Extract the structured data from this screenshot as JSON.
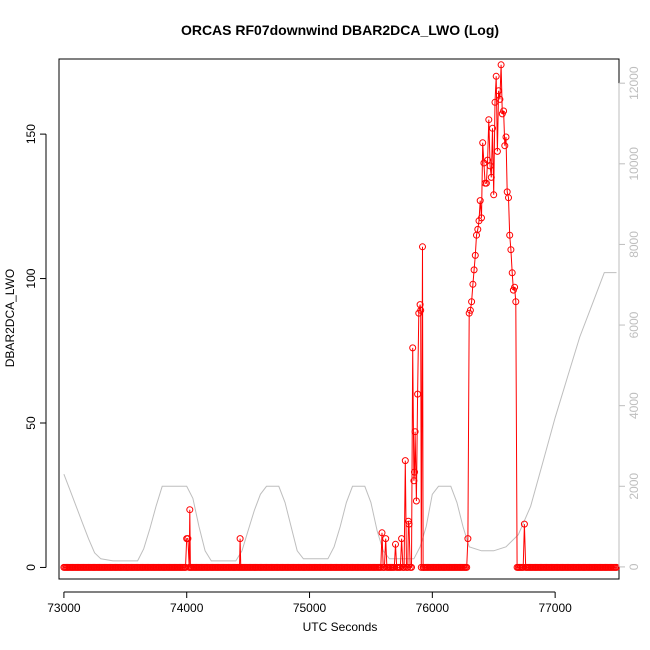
{
  "colors": {
    "primary_series": "#ff0000",
    "altitude_series": "#bebebe",
    "axis": "#000000",
    "right_axis": "#bebebe"
  },
  "chart_data": {
    "type": "line",
    "title": "ORCAS RF07downwind DBAR2DCA_LWO (Log)",
    "xlabel": "UTC Seconds",
    "ylabel": "DBAR2DCA_LWO",
    "y2label": "",
    "xlim": [
      72960,
      77520
    ],
    "ylim": [
      -4,
      176
    ],
    "y2lim": [
      -300,
      12600
    ],
    "x_ticks": [
      73000,
      74000,
      75000,
      76000,
      77000
    ],
    "y_ticks": [
      0,
      50,
      100,
      150
    ],
    "y2_ticks": [
      0,
      2000,
      4000,
      6000,
      8000,
      10000,
      12000
    ],
    "grid": false,
    "marker": "open-circle",
    "series": [
      {
        "axis": "left",
        "style": "line+markers",
        "zero_baseline": {
          "x_start": 73000,
          "x_end": 77500,
          "step": 10
        },
        "points": [
          [
            73990,
            0
          ],
          [
            74000,
            10
          ],
          [
            74010,
            10
          ],
          [
            74020,
            0
          ],
          [
            74025,
            20
          ],
          [
            74030,
            0
          ],
          [
            74430,
            0
          ],
          [
            74435,
            10
          ],
          [
            74440,
            0
          ],
          [
            75580,
            0
          ],
          [
            75590,
            12
          ],
          [
            75600,
            0
          ],
          [
            75620,
            10
          ],
          [
            75630,
            0
          ],
          [
            75690,
            0
          ],
          [
            75700,
            8
          ],
          [
            75710,
            0
          ],
          [
            75740,
            0
          ],
          [
            75750,
            10
          ],
          [
            75760,
            0
          ],
          [
            75770,
            0
          ],
          [
            75780,
            37
          ],
          [
            75790,
            0
          ],
          [
            75800,
            0
          ],
          [
            75805,
            16
          ],
          [
            75810,
            15
          ],
          [
            75820,
            0
          ],
          [
            75830,
            0
          ],
          [
            75840,
            76
          ],
          [
            75850,
            30
          ],
          [
            75855,
            33
          ],
          [
            75860,
            47
          ],
          [
            75870,
            23
          ],
          [
            75880,
            60
          ],
          [
            75890,
            88
          ],
          [
            75900,
            91
          ],
          [
            75905,
            89
          ],
          [
            75910,
            0
          ],
          [
            75920,
            111
          ],
          [
            75925,
            0
          ],
          [
            76280,
            0
          ],
          [
            76290,
            10
          ],
          [
            76300,
            88
          ],
          [
            76310,
            89
          ],
          [
            76320,
            92
          ],
          [
            76330,
            98
          ],
          [
            76340,
            103
          ],
          [
            76350,
            108
          ],
          [
            76360,
            115
          ],
          [
            76370,
            117
          ],
          [
            76380,
            120
          ],
          [
            76390,
            127
          ],
          [
            76400,
            121
          ],
          [
            76410,
            147
          ],
          [
            76420,
            140
          ],
          [
            76430,
            133
          ],
          [
            76440,
            133
          ],
          [
            76450,
            141
          ],
          [
            76460,
            155
          ],
          [
            76470,
            139
          ],
          [
            76480,
            135
          ],
          [
            76490,
            152
          ],
          [
            76500,
            129
          ],
          [
            76510,
            161
          ],
          [
            76520,
            170
          ],
          [
            76530,
            144
          ],
          [
            76540,
            165
          ],
          [
            76550,
            162
          ],
          [
            76560,
            174
          ],
          [
            76570,
            157
          ],
          [
            76580,
            158
          ],
          [
            76590,
            146
          ],
          [
            76600,
            149
          ],
          [
            76610,
            130
          ],
          [
            76620,
            128
          ],
          [
            76630,
            115
          ],
          [
            76640,
            110
          ],
          [
            76650,
            102
          ],
          [
            76660,
            96
          ],
          [
            76670,
            97
          ],
          [
            76680,
            92
          ],
          [
            76690,
            0
          ],
          [
            76740,
            0
          ],
          [
            76750,
            15
          ],
          [
            76760,
            0
          ]
        ]
      },
      {
        "axis": "right",
        "style": "line",
        "points": [
          [
            73000,
            2300
          ],
          [
            73050,
            1900
          ],
          [
            73100,
            1500
          ],
          [
            73150,
            1100
          ],
          [
            73200,
            700
          ],
          [
            73250,
            350
          ],
          [
            73300,
            200
          ],
          [
            73400,
            150
          ],
          [
            73500,
            150
          ],
          [
            73600,
            150
          ],
          [
            73650,
            450
          ],
          [
            73700,
            950
          ],
          [
            73750,
            1500
          ],
          [
            73800,
            2000
          ],
          [
            74000,
            2000
          ],
          [
            74050,
            1700
          ],
          [
            74100,
            1000
          ],
          [
            74150,
            400
          ],
          [
            74200,
            150
          ],
          [
            74400,
            150
          ],
          [
            74450,
            400
          ],
          [
            74500,
            900
          ],
          [
            74550,
            1400
          ],
          [
            74600,
            1800
          ],
          [
            74650,
            2000
          ],
          [
            74750,
            2000
          ],
          [
            74800,
            1600
          ],
          [
            74850,
            1000
          ],
          [
            74900,
            400
          ],
          [
            74950,
            200
          ],
          [
            75150,
            200
          ],
          [
            75200,
            500
          ],
          [
            75250,
            1000
          ],
          [
            75300,
            1600
          ],
          [
            75350,
            2000
          ],
          [
            75450,
            2000
          ],
          [
            75500,
            1600
          ],
          [
            75550,
            900
          ],
          [
            75600,
            400
          ],
          [
            75650,
            200
          ],
          [
            75850,
            200
          ],
          [
            75900,
            500
          ],
          [
            75950,
            1000
          ],
          [
            76000,
            1800
          ],
          [
            76050,
            2000
          ],
          [
            76150,
            2000
          ],
          [
            76200,
            1600
          ],
          [
            76250,
            1000
          ],
          [
            76300,
            500
          ],
          [
            76400,
            400
          ],
          [
            76500,
            400
          ],
          [
            76600,
            500
          ],
          [
            76700,
            800
          ],
          [
            76800,
            1500
          ],
          [
            76900,
            2600
          ],
          [
            77000,
            3700
          ],
          [
            77100,
            4700
          ],
          [
            77200,
            5700
          ],
          [
            77300,
            6500
          ],
          [
            77400,
            7300
          ],
          [
            77500,
            7300
          ]
        ]
      }
    ]
  }
}
